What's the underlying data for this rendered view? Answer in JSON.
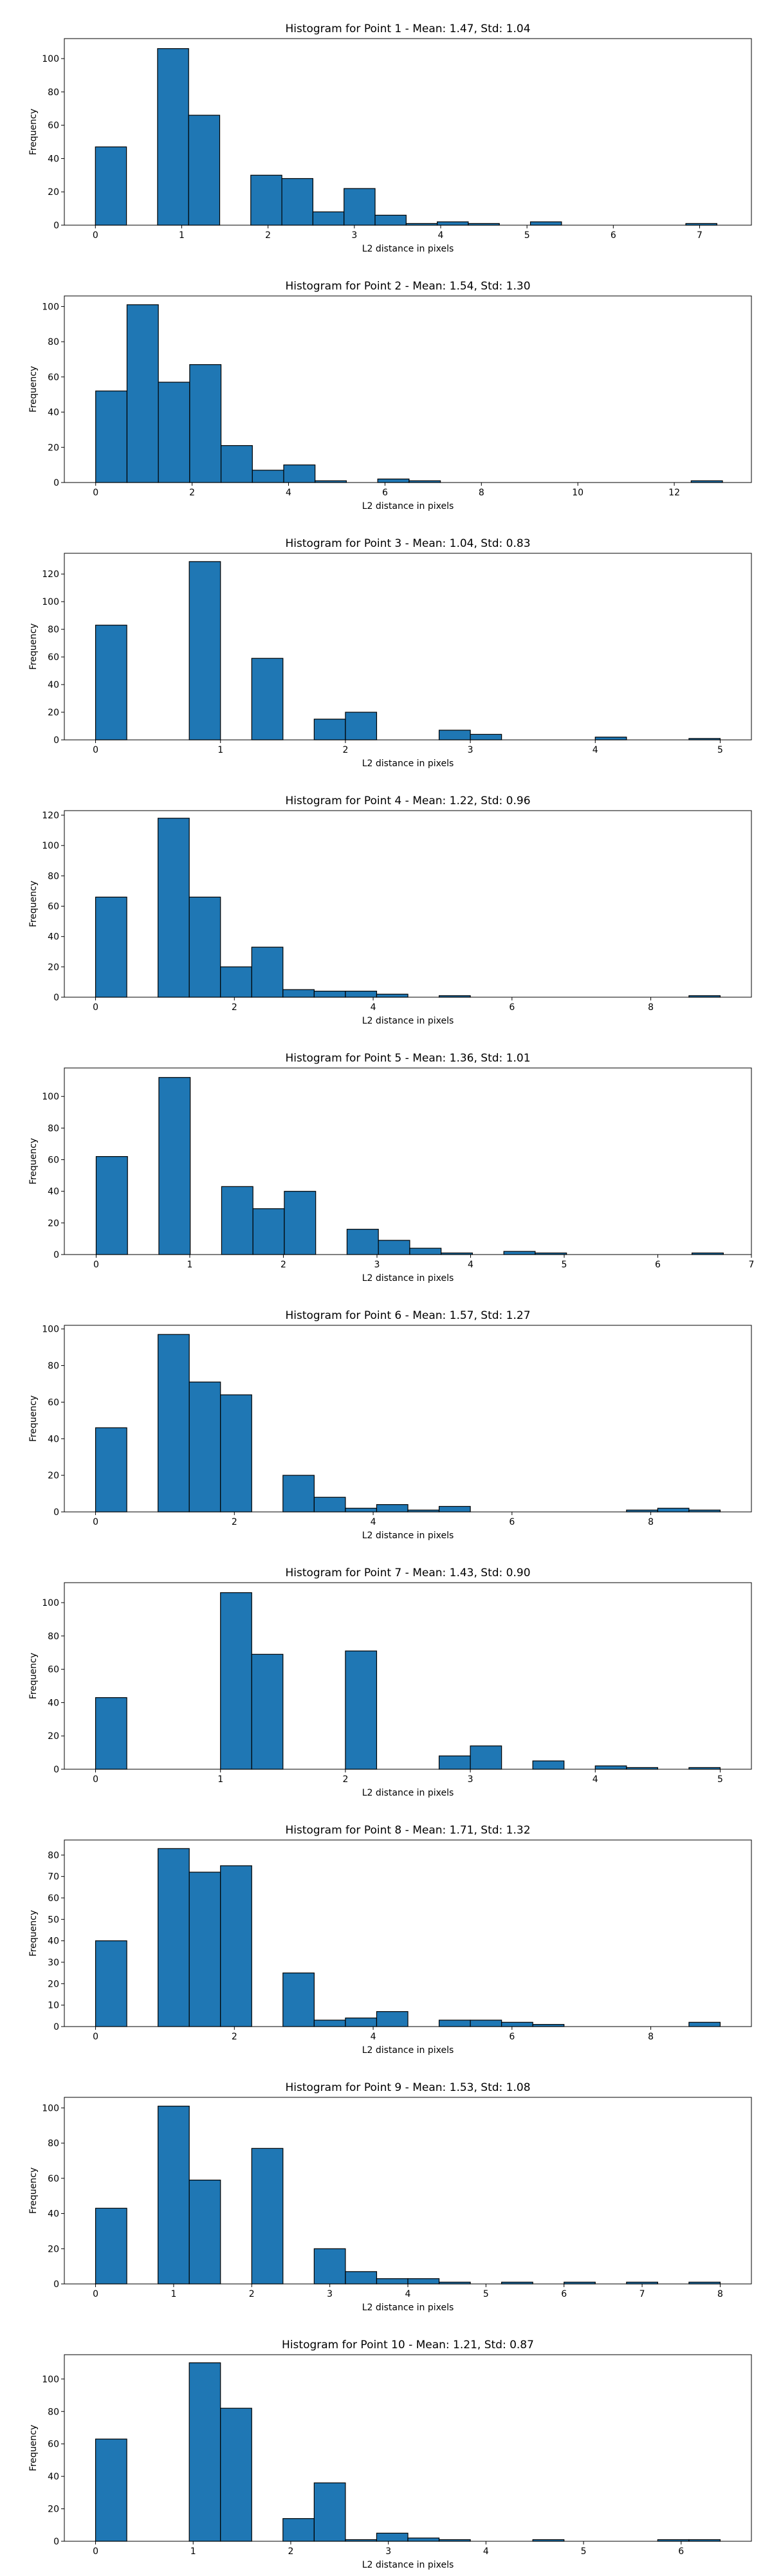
{
  "figure": {
    "background": "#ffffff",
    "bar_color": "#1f77b4",
    "edge_color": "#000000"
  },
  "chart_data": [
    {
      "type": "bar",
      "title": "Histogram for Point 1 - Mean: 1.47, Std: 1.04",
      "xlabel": "L2 distance in pixels",
      "ylabel": "Frequency",
      "xlim": [
        -0.36,
        7.6
      ],
      "ylim": [
        0,
        112
      ],
      "xticks": [
        0,
        1,
        2,
        3,
        4,
        5,
        6,
        7
      ],
      "yticks": [
        0,
        20,
        40,
        60,
        80,
        100
      ],
      "bin_edges": [
        0.0,
        0.36,
        0.72,
        1.08,
        1.44,
        1.8,
        2.16,
        2.52,
        2.88,
        3.24,
        3.6,
        3.96,
        4.32,
        4.68,
        5.04,
        5.4,
        5.76,
        6.12,
        6.48,
        6.84,
        7.2
      ],
      "values": [
        47,
        0,
        106,
        66,
        0,
        30,
        28,
        8,
        22,
        6,
        1,
        2,
        1,
        0,
        2,
        0,
        0,
        0,
        0,
        1
      ]
    },
    {
      "type": "bar",
      "title": "Histogram for Point 2 - Mean: 1.54, Std: 1.30",
      "xlabel": "L2 distance in pixels",
      "ylabel": "Frequency",
      "xlim": [
        -0.65,
        13.6
      ],
      "ylim": [
        0,
        106
      ],
      "xticks": [
        0,
        2,
        4,
        6,
        8,
        10,
        12
      ],
      "yticks": [
        0,
        20,
        40,
        60,
        80,
        100
      ],
      "bin_edges": [
        0.0,
        0.65,
        1.3,
        1.95,
        2.6,
        3.25,
        3.9,
        4.55,
        5.2,
        5.85,
        6.5,
        7.15,
        7.8,
        8.45,
        9.1,
        9.75,
        10.4,
        11.05,
        11.7,
        12.35,
        13.0
      ],
      "values": [
        52,
        101,
        57,
        67,
        21,
        7,
        10,
        1,
        0,
        2,
        1,
        0,
        0,
        0,
        0,
        0,
        0,
        0,
        0,
        1
      ]
    },
    {
      "type": "bar",
      "title": "Histogram for Point 3 - Mean: 1.04, Std: 0.83",
      "xlabel": "L2 distance in pixels",
      "ylabel": "Frequency",
      "xlim": [
        -0.25,
        5.25
      ],
      "ylim": [
        0,
        135
      ],
      "xticks": [
        0,
        1,
        2,
        3,
        4,
        5
      ],
      "yticks": [
        0,
        20,
        40,
        60,
        80,
        100,
        120
      ],
      "bin_edges": [
        0.0,
        0.25,
        0.5,
        0.75,
        1.0,
        1.25,
        1.5,
        1.75,
        2.0,
        2.25,
        2.5,
        2.75,
        3.0,
        3.25,
        3.5,
        3.75,
        4.0,
        4.25,
        4.5,
        4.75,
        5.0
      ],
      "values": [
        83,
        0,
        0,
        129,
        0,
        59,
        0,
        15,
        20,
        0,
        0,
        7,
        4,
        0,
        0,
        0,
        2,
        0,
        0,
        1
      ]
    },
    {
      "type": "bar",
      "title": "Histogram for Point 4 - Mean: 1.22, Std: 0.96",
      "xlabel": "L2 distance in pixels",
      "ylabel": "Frequency",
      "xlim": [
        -0.45,
        9.45
      ],
      "ylim": [
        0,
        123
      ],
      "xticks": [
        0,
        2,
        4,
        6,
        8
      ],
      "yticks": [
        0,
        20,
        40,
        60,
        80,
        100,
        120
      ],
      "bin_edges": [
        0.0,
        0.45,
        0.9,
        1.35,
        1.8,
        2.25,
        2.7,
        3.15,
        3.6,
        4.05,
        4.5,
        4.95,
        5.4,
        5.85,
        6.3,
        6.75,
        7.2,
        7.65,
        8.1,
        8.55,
        9.0
      ],
      "values": [
        66,
        0,
        118,
        66,
        20,
        33,
        5,
        4,
        4,
        2,
        0,
        1,
        0,
        0,
        0,
        0,
        0,
        0,
        0,
        1
      ]
    },
    {
      "type": "bar",
      "title": "Histogram for Point 5 - Mean: 1.36, Std: 1.01",
      "xlabel": "L2 distance in pixels",
      "ylabel": "Frequency",
      "xlim": [
        -0.34,
        7.0
      ],
      "ylim": [
        0,
        118
      ],
      "xticks": [
        0,
        1,
        2,
        3,
        4,
        5,
        6,
        7
      ],
      "yticks": [
        0,
        20,
        40,
        60,
        80,
        100
      ],
      "bin_edges": [
        0.0,
        0.335,
        0.67,
        1.005,
        1.34,
        1.675,
        2.01,
        2.345,
        2.68,
        3.015,
        3.35,
        3.685,
        4.02,
        4.355,
        4.69,
        5.025,
        5.36,
        5.695,
        6.03,
        6.365,
        6.7
      ],
      "values": [
        62,
        0,
        112,
        0,
        43,
        29,
        40,
        0,
        16,
        9,
        4,
        1,
        0,
        2,
        1,
        0,
        0,
        0,
        0,
        1
      ]
    },
    {
      "type": "bar",
      "title": "Histogram for Point 6 - Mean: 1.57, Std: 1.27",
      "xlabel": "L2 distance in pixels",
      "ylabel": "Frequency",
      "xlim": [
        -0.45,
        9.45
      ],
      "ylim": [
        0,
        102
      ],
      "xticks": [
        0,
        2,
        4,
        6,
        8
      ],
      "yticks": [
        0,
        20,
        40,
        60,
        80,
        100
      ],
      "bin_edges": [
        0.0,
        0.45,
        0.9,
        1.35,
        1.8,
        2.25,
        2.7,
        3.15,
        3.6,
        4.05,
        4.5,
        4.95,
        5.4,
        5.85,
        6.3,
        6.75,
        7.2,
        7.65,
        8.1,
        8.55,
        9.0
      ],
      "values": [
        46,
        0,
        97,
        71,
        64,
        0,
        20,
        8,
        2,
        4,
        1,
        3,
        0,
        0,
        0,
        0,
        0,
        1,
        2,
        1
      ]
    },
    {
      "type": "bar",
      "title": "Histogram for Point 7 - Mean: 1.43, Std: 0.90",
      "xlabel": "L2 distance in pixels",
      "ylabel": "Frequency",
      "xlim": [
        -0.25,
        5.25
      ],
      "ylim": [
        0,
        112
      ],
      "xticks": [
        0,
        1,
        2,
        3,
        4,
        5
      ],
      "yticks": [
        0,
        20,
        40,
        60,
        80,
        100
      ],
      "bin_edges": [
        0.0,
        0.25,
        0.5,
        0.75,
        1.0,
        1.25,
        1.5,
        1.75,
        2.0,
        2.25,
        2.5,
        2.75,
        3.0,
        3.25,
        3.5,
        3.75,
        4.0,
        4.25,
        4.5,
        4.75,
        5.0
      ],
      "values": [
        43,
        0,
        0,
        0,
        106,
        69,
        0,
        0,
        71,
        0,
        0,
        8,
        14,
        0,
        5,
        0,
        2,
        1,
        0,
        1
      ]
    },
    {
      "type": "bar",
      "title": "Histogram for Point 8 - Mean: 1.71, Std: 1.32",
      "xlabel": "L2 distance in pixels",
      "ylabel": "Frequency",
      "xlim": [
        -0.45,
        9.45
      ],
      "ylim": [
        0,
        87
      ],
      "xticks": [
        0,
        2,
        4,
        6,
        8
      ],
      "yticks": [
        0,
        10,
        20,
        30,
        40,
        50,
        60,
        70,
        80
      ],
      "bin_edges": [
        0.0,
        0.45,
        0.9,
        1.35,
        1.8,
        2.25,
        2.7,
        3.15,
        3.6,
        4.05,
        4.5,
        4.95,
        5.4,
        5.85,
        6.3,
        6.75,
        7.2,
        7.65,
        8.1,
        8.55,
        9.0
      ],
      "values": [
        40,
        0,
        83,
        72,
        75,
        0,
        25,
        3,
        4,
        7,
        0,
        3,
        3,
        2,
        1,
        0,
        0,
        0,
        0,
        2
      ]
    },
    {
      "type": "bar",
      "title": "Histogram for Point 9 - Mean: 1.53, Std: 1.08",
      "xlabel": "L2 distance in pixels",
      "ylabel": "Frequency",
      "xlim": [
        -0.4,
        8.4
      ],
      "ylim": [
        0,
        106
      ],
      "xticks": [
        0,
        1,
        2,
        3,
        4,
        5,
        6,
        7,
        8
      ],
      "yticks": [
        0,
        20,
        40,
        60,
        80,
        100
      ],
      "bin_edges": [
        0.0,
        0.4,
        0.8,
        1.2,
        1.6,
        2.0,
        2.4,
        2.8,
        3.2,
        3.6,
        4.0,
        4.4,
        4.8,
        5.2,
        5.6,
        6.0,
        6.4,
        6.8,
        7.2,
        7.6,
        8.0
      ],
      "values": [
        43,
        0,
        101,
        59,
        0,
        77,
        0,
        20,
        7,
        3,
        3,
        1,
        0,
        1,
        0,
        1,
        0,
        1,
        0,
        1
      ]
    },
    {
      "type": "bar",
      "title": "Histogram for Point 10 - Mean: 1.21, Std: 0.87",
      "xlabel": "L2 distance in pixels",
      "ylabel": "Frequency",
      "xlim": [
        -0.32,
        6.72
      ],
      "ylim": [
        0,
        115
      ],
      "xticks": [
        0,
        1,
        2,
        3,
        4,
        5,
        6
      ],
      "yticks": [
        0,
        20,
        40,
        60,
        80,
        100
      ],
      "bin_edges": [
        0.0,
        0.32,
        0.64,
        0.96,
        1.28,
        1.6,
        1.92,
        2.24,
        2.56,
        2.88,
        3.2,
        3.52,
        3.84,
        4.16,
        4.48,
        4.8,
        5.12,
        5.44,
        5.76,
        6.08,
        6.4
      ],
      "values": [
        63,
        0,
        0,
        110,
        82,
        0,
        14,
        36,
        1,
        5,
        2,
        1,
        0,
        0,
        1,
        0,
        0,
        0,
        1,
        1
      ]
    }
  ]
}
